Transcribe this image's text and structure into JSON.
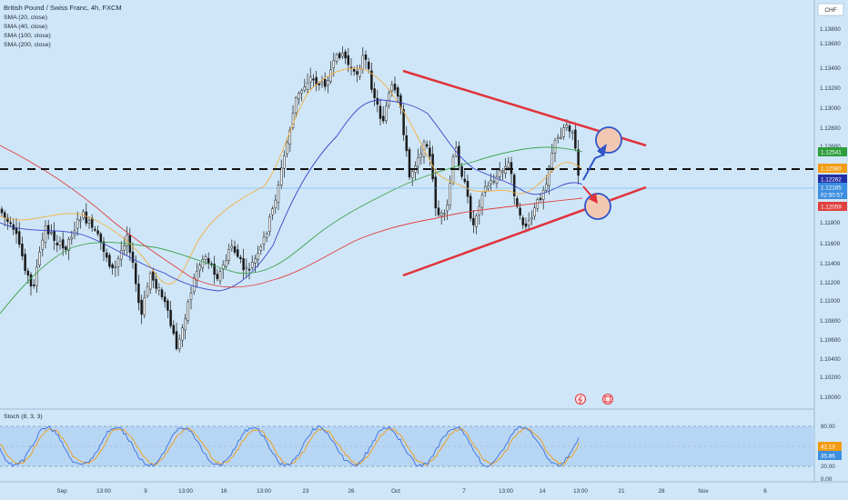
{
  "header": {
    "symbol_title": "British Pound / Swiss Franc, 4h, FXCM",
    "currency": "CHF"
  },
  "indicators": {
    "sma": [
      {
        "label": "SMA (20, close)",
        "color": "#f5b041"
      },
      {
        "label": "SMA (40, close)",
        "color": "#3a45c8"
      },
      {
        "label": "SMA (100, close)",
        "color": "#3fa34d"
      },
      {
        "label": "SMA (200, close)",
        "color": "#e0413f"
      }
    ],
    "stoch_label": "Stoch (8, 3, 3)"
  },
  "price_axis": {
    "ticks": [
      "1.13800",
      "1.13600",
      "1.13400",
      "1.13200",
      "1.13000",
      "1.12800",
      "1.12600",
      "1.11800",
      "1.11600",
      "1.11400",
      "1.11200",
      "1.11000",
      "1.10800",
      "1.10600",
      "1.10400",
      "1.10200",
      "1.10000"
    ],
    "badges": [
      {
        "value": "1.12541",
        "color": "#2e9e3c"
      },
      {
        "value": "1.12380",
        "color": "#f39c12"
      },
      {
        "value": "1.12262",
        "color": "#2130a6"
      },
      {
        "value": "1.12165",
        "color": "#3d8fe0"
      },
      {
        "value": "02:50:57",
        "color": "#3d8fe0"
      },
      {
        "value": "1.12059",
        "color": "#e0413f"
      }
    ]
  },
  "stoch_axis": {
    "ticks": [
      "80.00",
      "20.00",
      "0.00"
    ],
    "badges": [
      {
        "value": "42.13",
        "color": "#f39c12"
      },
      {
        "value": "35.86",
        "color": "#3d8fe0"
      }
    ]
  },
  "time_axis": {
    "labels": [
      "Sep",
      "13:00",
      "9",
      "13:00",
      "16",
      "13:00",
      "23",
      "26",
      "Oct",
      "7",
      "13:00",
      "14",
      "13:00",
      "21",
      "28",
      "Nov",
      "6"
    ]
  },
  "chart_data": {
    "type": "candlestick",
    "title": "British Pound / Swiss Franc, 4h, FXCM",
    "y_unit": "CHF",
    "ylim": [
      1.1015,
      1.1395
    ],
    "dashed_level": 1.1238,
    "series": [
      {
        "name": "SMA (20, close)",
        "color": "#f5b041"
      },
      {
        "name": "SMA (40, close)",
        "color": "#3a45c8"
      },
      {
        "name": "SMA (100, close)",
        "color": "#3fa34d"
      },
      {
        "name": "SMA (200, close)",
        "color": "#e0413f"
      }
    ],
    "last_values": {
      "close": 1.12165,
      "sma20": 1.1238,
      "sma40": 1.12262,
      "sma100": 1.12541,
      "sma200": 1.12059
    },
    "stochastic": {
      "label": "Stoch (8, 3, 3)",
      "k": 42.13,
      "d": 35.86,
      "levels": [
        80,
        20
      ]
    },
    "annotations": [
      "symmetrical triangle (red trendlines)",
      "bullish breakout target circle",
      "bearish breakdown target circle"
    ]
  }
}
